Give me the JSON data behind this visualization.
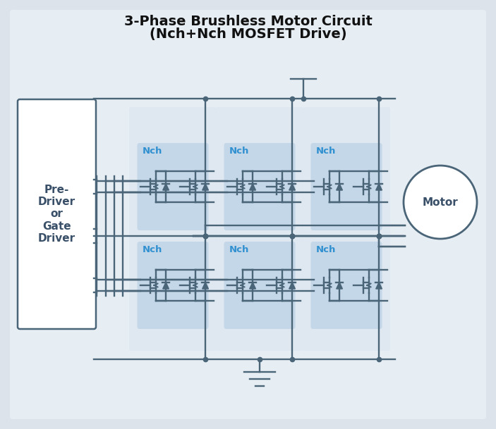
{
  "title_line1": "3-Phase Brushless Motor Circuit",
  "title_line2": "(Nch+Nch MOSFET Drive)",
  "bg_color": "#dce3ea",
  "wire_color": "#4a6478",
  "inner_bg": "#e6edf3",
  "box_dark_blue": "#b8cede",
  "box_light_blue": "#dae4ef",
  "nch_color": "#3090d0",
  "gate_driver_label": "Pre-\nDriver\nor\nGate\nDriver",
  "motor_label": "Motor",
  "figsize": [
    7.03,
    6.09
  ],
  "dpi": 100
}
